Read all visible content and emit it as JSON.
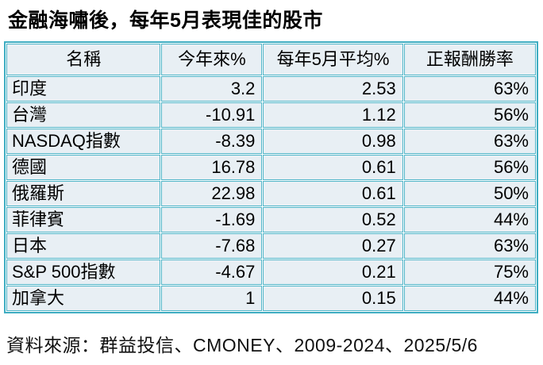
{
  "title": "金融海嘯後，每年5月表現佳的股市",
  "source": "資料來源：群益投信、CMONEY、2009-2024、2025/5/6",
  "colors": {
    "border_teal": "#4fb5c8",
    "outer_border_teal": "#3fadc2",
    "cell_background": "#e8eff4",
    "text": "#000000",
    "page_background": "#ffffff"
  },
  "table": {
    "columns": [
      "名稱",
      "今年來%",
      "每年5月平均%",
      "正報酬勝率"
    ],
    "rows": [
      [
        "印度",
        "3.2",
        "2.53",
        "63%"
      ],
      [
        "台灣",
        "-10.91",
        "1.12",
        "56%"
      ],
      [
        "NASDAQ指數",
        "-8.39",
        "0.98",
        "63%"
      ],
      [
        "德國",
        "16.78",
        "0.61",
        "56%"
      ],
      [
        "俄羅斯",
        "22.98",
        "0.61",
        "50%"
      ],
      [
        "菲律賓",
        "-1.69",
        "0.52",
        "44%"
      ],
      [
        "日本",
        "-7.68",
        "0.27",
        "63%"
      ],
      [
        "S&P 500指數",
        "-4.67",
        "0.21",
        "75%"
      ],
      [
        "加拿大",
        "1",
        "0.15",
        "44%"
      ]
    ]
  },
  "chart_data": {
    "type": "table",
    "title": "金融海嘯後，每年5月表現佳的股市",
    "columns": [
      "名稱",
      "今年來%",
      "每年5月平均%",
      "正報酬勝率"
    ],
    "categories": [
      "印度",
      "台灣",
      "NASDAQ指數",
      "德國",
      "俄羅斯",
      "菲律賓",
      "日本",
      "S&P 500指數",
      "加拿大"
    ],
    "series": [
      {
        "name": "今年來%",
        "values": [
          3.2,
          -10.91,
          -8.39,
          16.78,
          22.98,
          -1.69,
          -7.68,
          -4.67,
          1
        ]
      },
      {
        "name": "每年5月平均%",
        "values": [
          2.53,
          1.12,
          0.98,
          0.61,
          0.61,
          0.52,
          0.27,
          0.21,
          0.15
        ]
      },
      {
        "name": "正報酬勝率",
        "values": [
          "63%",
          "56%",
          "63%",
          "56%",
          "50%",
          "44%",
          "63%",
          "75%",
          "44%"
        ]
      }
    ],
    "footnote": "資料來源：群益投信、CMONEY、2009-2024、2025/5/6"
  }
}
